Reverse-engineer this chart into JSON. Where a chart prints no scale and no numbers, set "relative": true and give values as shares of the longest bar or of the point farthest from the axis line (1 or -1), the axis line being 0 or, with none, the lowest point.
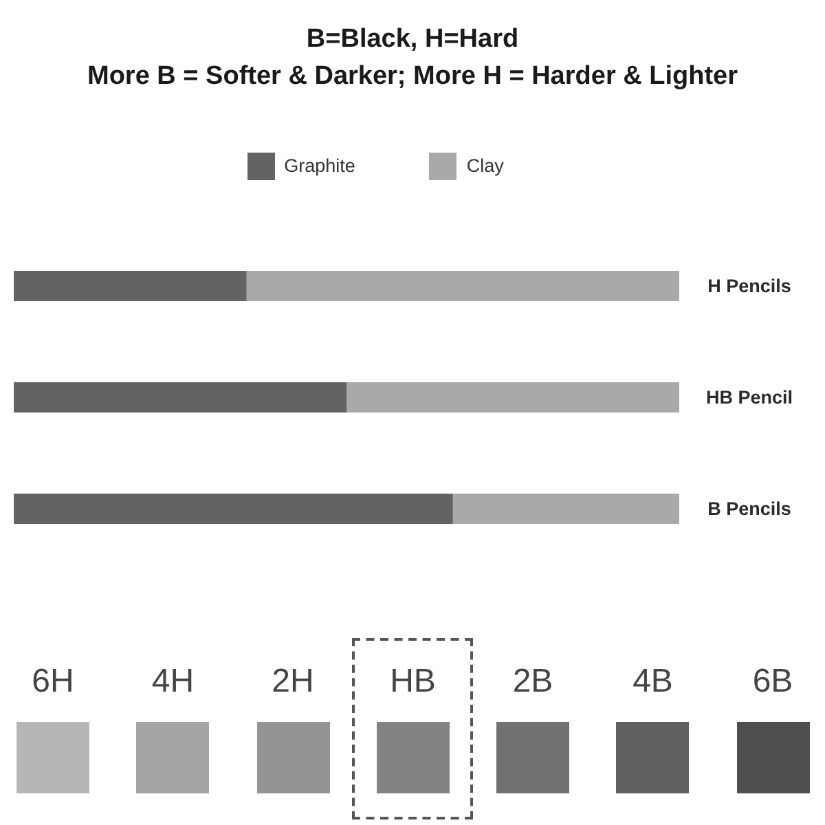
{
  "chart_data": {
    "type": "bar",
    "title": "B=Black, H=Hard",
    "subtitle": "More B = Softer & Darker; More H = Harder & Lighter",
    "orientation": "horizontal",
    "stacked": true,
    "relative": true,
    "categories": [
      "H Pencils",
      "HB Pencil",
      "B Pencils"
    ],
    "series": [
      {
        "name": "Graphite",
        "color": "#636363",
        "values": [
          0.35,
          0.5,
          0.66
        ]
      },
      {
        "name": "Clay",
        "color": "#a9a9a9",
        "values": [
          0.65,
          0.5,
          0.34
        ]
      }
    ],
    "legend": "top",
    "annotations": [
      "6H",
      "4H",
      "2H",
      "HB",
      "2B",
      "4B",
      "6B"
    ]
  }
}
